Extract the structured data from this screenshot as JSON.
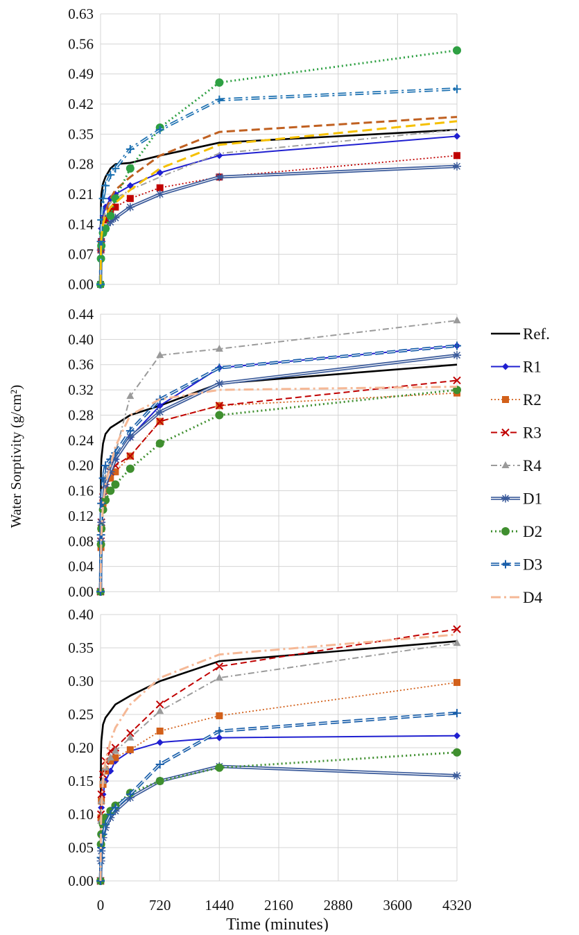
{
  "chart_data": {
    "type": "line",
    "ylabel": "Water Sorptivity (g/cm²)",
    "xlabel": "Time (minutes)",
    "x_ticks": [
      0,
      720,
      1440,
      2160,
      2880,
      3600,
      4320
    ],
    "xlim": [
      0,
      4320
    ],
    "grid": true,
    "legend_position": "right",
    "x": [
      0,
      5,
      10,
      30,
      60,
      120,
      180,
      360,
      720,
      1440,
      4320
    ],
    "series_styles": [
      {
        "name": "Ref.",
        "color": "#000000",
        "dash": "",
        "width": 2.6,
        "marker": "none"
      },
      {
        "name": "R1",
        "color": "#1f1fd0",
        "dash": "",
        "width": 2,
        "marker": "diamond"
      },
      {
        "name": "R2",
        "color": "#d2601a",
        "dash": "2,3",
        "width": 1.8,
        "marker": "square"
      },
      {
        "name": "R3",
        "color": "#c00000",
        "dash": "9,5",
        "width": 2,
        "marker": "x"
      },
      {
        "name": "R4",
        "color": "#9a9a9a",
        "dash": "9,4,2,4",
        "width": 2,
        "marker": "triangle"
      },
      {
        "name": "D1",
        "color": "#3a5a9a",
        "dash": "",
        "width": 2.4,
        "marker": "star",
        "double": true
      },
      {
        "name": "D2",
        "color": "#3f8f2f",
        "dash": "2,4",
        "width": 3,
        "marker": "circle"
      },
      {
        "name": "D3",
        "color": "#1a5faa",
        "dash": "12,5",
        "width": 2.4,
        "marker": "plus",
        "double": true
      },
      {
        "name": "D4",
        "color": "#f5b896",
        "dash": "14,5,3,5",
        "width": 3,
        "marker": "none"
      }
    ],
    "panels": [
      {
        "ylim": [
          0,
          0.63
        ],
        "y_ticks": [
          "0.00",
          "0.07",
          "0.14",
          "0.21",
          "0.28",
          "0.35",
          "0.42",
          "0.49",
          "0.56",
          "0.63"
        ],
        "series": [
          {
            "name": "Ref.",
            "color": "#000000",
            "dash": "",
            "width": 2.6,
            "marker": "none",
            "values": [
              0,
              0.19,
              0.21,
              0.235,
              0.25,
              0.27,
              0.28,
              0.283,
              0.3,
              0.33,
              0.36
            ]
          },
          {
            "name": "R1",
            "color": "#1f1fd0",
            "dash": "",
            "width": 2,
            "marker": "diamond",
            "values": [
              0,
              0.1,
              0.13,
              0.16,
              0.18,
              0.2,
              0.21,
              0.23,
              0.26,
              0.3,
              0.345
            ]
          },
          {
            "name": "R2",
            "color": "#c00000",
            "dash": "2,3",
            "width": 1.8,
            "marker": "square",
            "values": [
              0,
              0.08,
              0.1,
              0.13,
              0.15,
              0.17,
              0.18,
              0.2,
              0.225,
              0.25,
              0.3
            ]
          },
          {
            "name": "R3",
            "color": "#c06020",
            "dash": "12,6",
            "width": 3,
            "marker": "none",
            "values": [
              0,
              0.09,
              0.12,
              0.15,
              0.17,
              0.2,
              0.22,
              0.25,
              0.3,
              0.355,
              0.39
            ]
          },
          {
            "name": "R4",
            "color": "#a0a0a0",
            "dash": "9,4,2,4",
            "width": 2,
            "marker": "none",
            "values": [
              0,
              0.09,
              0.12,
              0.15,
              0.17,
              0.19,
              0.2,
              0.22,
              0.25,
              0.305,
              0.36
            ]
          },
          {
            "name": "D1",
            "color": "#3a5a9a",
            "dash": "",
            "width": 2.4,
            "marker": "star",
            "double": true,
            "values": [
              0,
              0.08,
              0.1,
              0.12,
              0.13,
              0.145,
              0.155,
              0.18,
              0.21,
              0.25,
              0.275
            ]
          },
          {
            "name": "D2",
            "color": "#2ea043",
            "dash": "2,4",
            "width": 3,
            "marker": "circle",
            "values": [
              0,
              0.06,
              0.09,
              0.12,
              0.13,
              0.16,
              0.2,
              0.27,
              0.365,
              0.47,
              0.545
            ]
          },
          {
            "name": "D3",
            "color": "#1a6fb0",
            "dash": "12,5,3,5",
            "width": 2.4,
            "marker": "plus",
            "double": true,
            "values": [
              0,
              0.1,
              0.15,
              0.2,
              0.23,
              0.255,
              0.27,
              0.315,
              0.36,
              0.43,
              0.455
            ]
          },
          {
            "name": "D4",
            "color": "#f5c000",
            "dash": "14,7",
            "width": 3,
            "marker": "none",
            "values": [
              0,
              0.08,
              0.11,
              0.14,
              0.16,
              0.18,
              0.19,
              0.22,
              0.27,
              0.325,
              0.38
            ]
          }
        ]
      },
      {
        "ylim": [
          0,
          0.44
        ],
        "y_ticks": [
          "0.00",
          "0.04",
          "0.08",
          "0.12",
          "0.16",
          "0.20",
          "0.24",
          "0.28",
          "0.32",
          "0.36",
          "0.40",
          "0.44"
        ],
        "series": [
          {
            "name": "Ref.",
            "color": "#000000",
            "dash": "",
            "width": 2.6,
            "marker": "none",
            "values": [
              0,
              0.19,
              0.21,
              0.235,
              0.25,
              0.26,
              0.265,
              0.28,
              0.295,
              0.33,
              0.36
            ]
          },
          {
            "name": "R1",
            "color": "#1f1fd0",
            "dash": "",
            "width": 2,
            "marker": "diamond",
            "values": [
              0,
              0.08,
              0.11,
              0.15,
              0.17,
              0.19,
              0.21,
              0.245,
              0.295,
              0.355,
              0.39
            ]
          },
          {
            "name": "R2",
            "color": "#d2601a",
            "dash": "2,3",
            "width": 1.8,
            "marker": "square",
            "values": [
              0,
              0.07,
              0.1,
              0.14,
              0.16,
              0.18,
              0.19,
              0.215,
              0.27,
              0.295,
              0.315
            ]
          },
          {
            "name": "R3",
            "color": "#c00000",
            "dash": "9,5",
            "width": 2,
            "marker": "x",
            "values": [
              0,
              0.08,
              0.11,
              0.15,
              0.17,
              0.19,
              0.2,
              0.215,
              0.27,
              0.295,
              0.335
            ]
          },
          {
            "name": "R4",
            "color": "#9a9a9a",
            "dash": "9,4,2,4",
            "width": 2,
            "marker": "triangle",
            "values": [
              0,
              0.08,
              0.11,
              0.16,
              0.18,
              0.2,
              0.22,
              0.31,
              0.375,
              0.385,
              0.43
            ]
          },
          {
            "name": "D1",
            "color": "#3a5a9a",
            "dash": "",
            "width": 2.4,
            "marker": "star",
            "double": true,
            "values": [
              0,
              0.08,
              0.11,
              0.15,
              0.17,
              0.19,
              0.21,
              0.245,
              0.285,
              0.33,
              0.375
            ]
          },
          {
            "name": "D2",
            "color": "#3f8f2f",
            "dash": "2,4",
            "width": 3,
            "marker": "circle",
            "values": [
              0,
              0.075,
              0.1,
              0.13,
              0.145,
              0.16,
              0.17,
              0.195,
              0.235,
              0.28,
              0.32
            ]
          },
          {
            "name": "D3",
            "color": "#1a5faa",
            "dash": "12,5",
            "width": 2.4,
            "marker": "plus",
            "double": true,
            "values": [
              0,
              0.09,
              0.14,
              0.18,
              0.2,
              0.21,
              0.22,
              0.255,
              0.305,
              0.355,
              0.39
            ]
          },
          {
            "name": "D4",
            "color": "#f5b896",
            "dash": "14,5,3,5",
            "width": 3,
            "marker": "none",
            "values": [
              0,
              0.06,
              0.09,
              0.14,
              0.17,
              0.2,
              0.23,
              0.28,
              0.305,
              0.32,
              0.325
            ]
          }
        ]
      },
      {
        "ylim": [
          0,
          0.4
        ],
        "y_ticks": [
          "0.00",
          "0.05",
          "0.10",
          "0.15",
          "0.20",
          "0.25",
          "0.30",
          "0.35",
          "0.40"
        ],
        "series": [
          {
            "name": "Ref.",
            "color": "#000000",
            "dash": "",
            "width": 2.6,
            "marker": "none",
            "values": [
              0,
              0.19,
              0.21,
              0.235,
              0.245,
              0.255,
              0.265,
              0.278,
              0.3,
              0.33,
              0.36
            ]
          },
          {
            "name": "R1",
            "color": "#1f1fd0",
            "dash": "",
            "width": 2,
            "marker": "diamond",
            "values": [
              0,
              0.09,
              0.11,
              0.13,
              0.15,
              0.165,
              0.18,
              0.195,
              0.208,
              0.215,
              0.218
            ]
          },
          {
            "name": "R2",
            "color": "#d2601a",
            "dash": "2,3",
            "width": 1.8,
            "marker": "square",
            "values": [
              0,
              0.095,
              0.12,
              0.145,
              0.165,
              0.18,
              0.185,
              0.197,
              0.225,
              0.248,
              0.298
            ]
          },
          {
            "name": "R3",
            "color": "#c00000",
            "dash": "9,5",
            "width": 2,
            "marker": "x",
            "values": [
              0,
              0.1,
              0.13,
              0.16,
              0.18,
              0.195,
              0.2,
              0.222,
              0.265,
              0.322,
              0.378
            ]
          },
          {
            "name": "R4",
            "color": "#9a9a9a",
            "dash": "9,4,2,4",
            "width": 2,
            "marker": "triangle",
            "values": [
              0,
              0.09,
              0.12,
              0.15,
              0.17,
              0.185,
              0.195,
              0.215,
              0.255,
              0.305,
              0.357
            ]
          },
          {
            "name": "D1",
            "color": "#3a5a9a",
            "dash": "",
            "width": 2.4,
            "marker": "star",
            "double": true,
            "values": [
              0,
              0.03,
              0.045,
              0.065,
              0.08,
              0.095,
              0.105,
              0.125,
              0.15,
              0.172,
              0.158
            ]
          },
          {
            "name": "D2",
            "color": "#3f8f2f",
            "dash": "2,4",
            "width": 3,
            "marker": "circle",
            "values": [
              0,
              0.055,
              0.07,
              0.085,
              0.095,
              0.105,
              0.113,
              0.132,
              0.15,
              0.17,
              0.193
            ]
          },
          {
            "name": "D3",
            "color": "#1a5faa",
            "dash": "12,5",
            "width": 2.4,
            "marker": "plus",
            "double": true,
            "values": [
              0,
              0.035,
              0.05,
              0.07,
              0.085,
              0.1,
              0.11,
              0.13,
              0.175,
              0.225,
              0.252
            ]
          },
          {
            "name": "D4",
            "color": "#f5b896",
            "dash": "14,5,3,5",
            "width": 3,
            "marker": "none",
            "values": [
              0,
              0.08,
              0.11,
              0.15,
              0.18,
              0.21,
              0.23,
              0.265,
              0.305,
              0.34,
              0.37
            ]
          }
        ]
      }
    ]
  }
}
